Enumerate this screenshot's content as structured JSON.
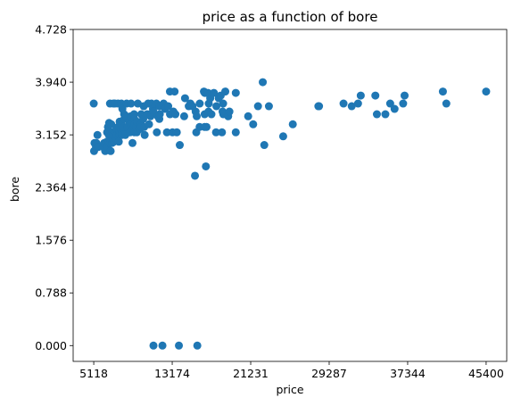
{
  "chart_data": {
    "type": "scatter",
    "title": "price as a function of bore",
    "xlabel": "price",
    "ylabel": "bore",
    "xlim": [
      3004,
      47514
    ],
    "ylim": [
      -0.2364,
      4.7286
    ],
    "xticks": [
      5118,
      13174,
      21231,
      29287,
      37344,
      45400
    ],
    "xtick_labels": [
      "5118",
      "13174",
      "21231",
      "29287",
      "37344",
      "45400"
    ],
    "yticks": [
      0.0,
      0.788,
      1.576,
      2.364,
      3.152,
      3.94,
      4.728
    ],
    "ytick_labels": [
      "0.000",
      "0.788",
      "1.576",
      "2.364",
      "3.152",
      "3.940",
      "4.728"
    ],
    "grid": false,
    "marker_color": "#1f77b4",
    "points": [
      [
        5118,
        3.62
      ],
      [
        5151,
        2.91
      ],
      [
        5195,
        3.03
      ],
      [
        5348,
        2.97
      ],
      [
        5389,
        3.03
      ],
      [
        5499,
        3.15
      ],
      [
        5572,
        2.97
      ],
      [
        6095,
        2.97
      ],
      [
        6189,
        3.03
      ],
      [
        6229,
        3.03
      ],
      [
        6295,
        2.91
      ],
      [
        6377,
        3.03
      ],
      [
        6479,
        3.05
      ],
      [
        6488,
        3.19
      ],
      [
        6529,
        2.97
      ],
      [
        6575,
        3.27
      ],
      [
        6649,
        3.03
      ],
      [
        6669,
        3.15
      ],
      [
        6692,
        3.33
      ],
      [
        6695,
        3.15
      ],
      [
        6785,
        3.62
      ],
      [
        6795,
        3.03
      ],
      [
        6849,
        3.15
      ],
      [
        6855,
        2.91
      ],
      [
        6918,
        3.31
      ],
      [
        6938,
        3.15
      ],
      [
        6989,
        3.03
      ],
      [
        7053,
        3.19
      ],
      [
        7099,
        3.08
      ],
      [
        7126,
        3.62
      ],
      [
        7129,
        3.15
      ],
      [
        7198,
        3.05
      ],
      [
        7295,
        3.62
      ],
      [
        7349,
        3.19
      ],
      [
        7457,
        3.08
      ],
      [
        7463,
        3.24
      ],
      [
        7499,
        3.15
      ],
      [
        7603,
        3.27
      ],
      [
        7609,
        3.62
      ],
      [
        7689,
        3.05
      ],
      [
        7738,
        3.19
      ],
      [
        7775,
        3.35
      ],
      [
        7788,
        3.15
      ],
      [
        7895,
        3.31
      ],
      [
        7898,
        3.24
      ],
      [
        7957,
        3.62
      ],
      [
        7975,
        3.31
      ],
      [
        7995,
        3.15
      ],
      [
        8013,
        3.19
      ],
      [
        8058,
        3.54
      ],
      [
        8189,
        3.24
      ],
      [
        8195,
        3.27
      ],
      [
        8238,
        3.46
      ],
      [
        8249,
        3.39
      ],
      [
        8358,
        3.15
      ],
      [
        8449,
        3.43
      ],
      [
        8495,
        3.62
      ],
      [
        8558,
        3.27
      ],
      [
        8778,
        3.35
      ],
      [
        8845,
        3.19
      ],
      [
        8916,
        3.31
      ],
      [
        8921,
        3.43
      ],
      [
        8948,
        3.62
      ],
      [
        9095,
        3.03
      ],
      [
        9233,
        3.27
      ],
      [
        9258,
        3.46
      ],
      [
        9279,
        3.39
      ],
      [
        9295,
        3.19
      ],
      [
        9298,
        3.31
      ],
      [
        9495,
        3.27
      ],
      [
        9538,
        3.19
      ],
      [
        9549,
        3.35
      ],
      [
        9639,
        3.62
      ],
      [
        9895,
        3.24
      ],
      [
        9960,
        3.31
      ],
      [
        9988,
        3.46
      ],
      [
        9989,
        3.27
      ],
      [
        10198,
        3.39
      ],
      [
        10245,
        3.58
      ],
      [
        10295,
        3.27
      ],
      [
        10345,
        3.15
      ],
      [
        10595,
        3.46
      ],
      [
        10698,
        3.62
      ],
      [
        10795,
        3.31
      ],
      [
        10898,
        3.46
      ],
      [
        10945,
        3.43
      ],
      [
        11048,
        3.62
      ],
      [
        11199,
        3.54
      ],
      [
        11245,
        3.5
      ],
      [
        11248,
        0.0
      ],
      [
        11549,
        3.62
      ],
      [
        11595,
        3.19
      ],
      [
        11694,
        3.43
      ],
      [
        11845,
        3.58
      ],
      [
        11850,
        3.39
      ],
      [
        11900,
        3.46
      ],
      [
        12170,
        0.0
      ],
      [
        12290,
        3.62
      ],
      [
        12440,
        3.54
      ],
      [
        12629,
        3.19
      ],
      [
        12764,
        3.58
      ],
      [
        12945,
        3.46
      ],
      [
        12940,
        3.8
      ],
      [
        13200,
        3.19
      ],
      [
        13295,
        3.5
      ],
      [
        13415,
        3.8
      ],
      [
        13499,
        3.46
      ],
      [
        13645,
        3.19
      ],
      [
        13860,
        0.0
      ],
      [
        13950,
        3.0
      ],
      [
        14399,
        3.43
      ],
      [
        14489,
        3.7
      ],
      [
        14869,
        3.58
      ],
      [
        15040,
        3.62
      ],
      [
        15250,
        3.58
      ],
      [
        15510,
        2.54
      ],
      [
        15580,
        3.5
      ],
      [
        15645,
        3.19
      ],
      [
        15690,
        3.43
      ],
      [
        15750,
        0.0
      ],
      [
        15985,
        3.27
      ],
      [
        15998,
        3.62
      ],
      [
        16430,
        3.8
      ],
      [
        16500,
        3.27
      ],
      [
        16503,
        3.46
      ],
      [
        16515,
        3.78
      ],
      [
        16558,
        3.78
      ],
      [
        16630,
        2.68
      ],
      [
        16695,
        3.27
      ],
      [
        16845,
        3.78
      ],
      [
        16900,
        3.5
      ],
      [
        16925,
        3.62
      ],
      [
        17075,
        3.7
      ],
      [
        17199,
        3.46
      ],
      [
        17450,
        3.78
      ],
      [
        17669,
        3.19
      ],
      [
        17710,
        3.58
      ],
      [
        17950,
        3.7
      ],
      [
        18150,
        3.74
      ],
      [
        18280,
        3.19
      ],
      [
        18344,
        3.5
      ],
      [
        18399,
        3.62
      ],
      [
        18420,
        3.46
      ],
      [
        18620,
        3.8
      ],
      [
        18920,
        3.43
      ],
      [
        19045,
        3.5
      ],
      [
        19699,
        3.19
      ],
      [
        19699,
        3.78
      ],
      [
        20970,
        3.43
      ],
      [
        21485,
        3.31
      ],
      [
        21980,
        3.58
      ],
      [
        22470,
        3.94
      ],
      [
        22625,
        3.0
      ],
      [
        23100,
        3.58
      ],
      [
        24565,
        3.13
      ],
      [
        25552,
        3.31
      ],
      [
        28176,
        3.58
      ],
      [
        28248,
        3.58
      ],
      [
        30760,
        3.62
      ],
      [
        31600,
        3.58
      ],
      [
        32250,
        3.62
      ],
      [
        32528,
        3.74
      ],
      [
        34028,
        3.74
      ],
      [
        34184,
        3.46
      ],
      [
        35056,
        3.46
      ],
      [
        35550,
        3.62
      ],
      [
        36000,
        3.54
      ],
      [
        36880,
        3.62
      ],
      [
        37028,
        3.74
      ],
      [
        40960,
        3.8
      ],
      [
        41315,
        3.62
      ],
      [
        45400,
        3.8
      ]
    ]
  }
}
